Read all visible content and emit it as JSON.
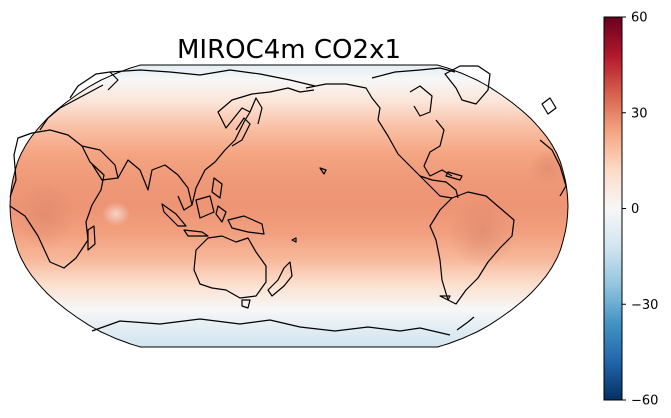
{
  "title": "MIROC4m CO2x1",
  "projection": "robinson",
  "central_longitude": 150,
  "colormap": "RdBu_r",
  "colorbar": {
    "orientation": "vertical",
    "placement": "right",
    "vmin": -60,
    "vmax": 60,
    "ticks": [
      60,
      30,
      0,
      -30,
      -60
    ],
    "tick_labels": [
      "60",
      "30",
      "0",
      "−30",
      "−60"
    ],
    "colors": [
      "#053061",
      "#2166ac",
      "#4393c3",
      "#92c5de",
      "#d1e5f0",
      "#f7f7f7",
      "#fddbc7",
      "#f4a582",
      "#d6604d",
      "#b2182b",
      "#67001f"
    ]
  },
  "field_bands": [
    {
      "lat": 90,
      "value": -6
    },
    {
      "lat": 75,
      "value": 0
    },
    {
      "lat": 60,
      "value": 8
    },
    {
      "lat": 45,
      "value": 18
    },
    {
      "lat": 30,
      "value": 24
    },
    {
      "lat": 15,
      "value": 26
    },
    {
      "lat": 0,
      "value": 27
    },
    {
      "lat": -15,
      "value": 25
    },
    {
      "lat": -30,
      "value": 20
    },
    {
      "lat": -45,
      "value": 10
    },
    {
      "lat": -60,
      "value": 0
    },
    {
      "lat": -75,
      "value": -8
    },
    {
      "lat": -90,
      "value": -12
    }
  ]
}
